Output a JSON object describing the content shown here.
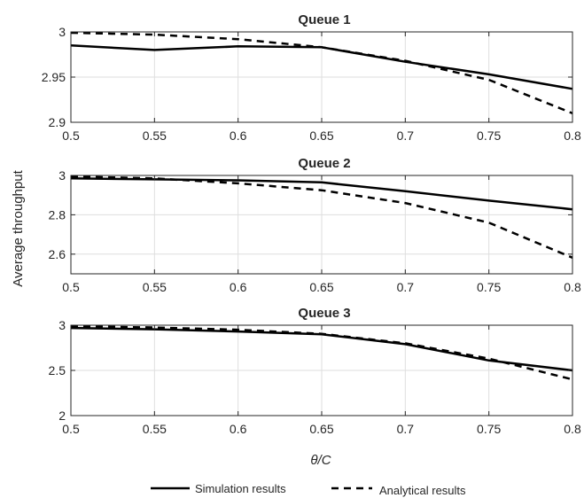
{
  "figure": {
    "ylabel": "Average throughput",
    "xlabel": "θ/C",
    "legend": [
      {
        "label": "Simulation results",
        "style": "solid",
        "color": "#000000"
      },
      {
        "label": "Analytical results",
        "style": "dashed",
        "color": "#000000"
      }
    ],
    "legend_position": "bottom-center"
  },
  "chart_data": [
    {
      "type": "line",
      "title": "Queue 1",
      "x": [
        0.5,
        0.55,
        0.6,
        0.65,
        0.7,
        0.75,
        0.8
      ],
      "xlim": [
        0.5,
        0.8
      ],
      "xticks": [
        "0.5",
        "0.55",
        "0.6",
        "0.65",
        "0.7",
        "0.75",
        "0.8"
      ],
      "ylim": [
        2.9,
        3.0
      ],
      "yticks": [
        2.9,
        2.95,
        3.0
      ],
      "ytick_labels": [
        "2.9",
        "2.95",
        "3"
      ],
      "grid": true,
      "series": [
        {
          "name": "Simulation results",
          "style": "solid",
          "values": [
            2.985,
            2.98,
            2.984,
            2.983,
            2.967,
            2.953,
            2.937
          ]
        },
        {
          "name": "Analytical results",
          "style": "dashed",
          "values": [
            2.999,
            2.997,
            2.992,
            2.983,
            2.968,
            2.947,
            2.91
          ]
        }
      ]
    },
    {
      "type": "line",
      "title": "Queue 2",
      "x": [
        0.5,
        0.55,
        0.6,
        0.65,
        0.7,
        0.75,
        0.8
      ],
      "xlim": [
        0.5,
        0.8
      ],
      "xticks": [
        "0.5",
        "0.55",
        "0.6",
        "0.65",
        "0.7",
        "0.75",
        "0.8"
      ],
      "ylim": [
        2.5,
        3.0
      ],
      "yticks": [
        2.6,
        2.8,
        3.0
      ],
      "ytick_labels": [
        "2.6",
        "2.8",
        "3"
      ],
      "grid": true,
      "series": [
        {
          "name": "Simulation results",
          "style": "solid",
          "values": [
            2.985,
            2.98,
            2.975,
            2.965,
            2.92,
            2.872,
            2.828
          ]
        },
        {
          "name": "Analytical results",
          "style": "dashed",
          "values": [
            2.995,
            2.985,
            2.96,
            2.925,
            2.86,
            2.76,
            2.582
          ]
        }
      ]
    },
    {
      "type": "line",
      "title": "Queue 3",
      "x": [
        0.5,
        0.55,
        0.6,
        0.65,
        0.7,
        0.75,
        0.8
      ],
      "xlim": [
        0.5,
        0.8
      ],
      "xticks": [
        "0.5",
        "0.55",
        "0.6",
        "0.65",
        "0.7",
        "0.75",
        "0.8"
      ],
      "ylim": [
        2.0,
        3.0
      ],
      "yticks": [
        2.0,
        2.5,
        3.0
      ],
      "ytick_labels": [
        "2",
        "2.5",
        "3"
      ],
      "grid": true,
      "series": [
        {
          "name": "Simulation results",
          "style": "solid",
          "values": [
            2.97,
            2.955,
            2.93,
            2.9,
            2.79,
            2.61,
            2.5
          ]
        },
        {
          "name": "Analytical results",
          "style": "dashed",
          "values": [
            2.99,
            2.975,
            2.95,
            2.905,
            2.8,
            2.63,
            2.4
          ]
        }
      ]
    }
  ]
}
